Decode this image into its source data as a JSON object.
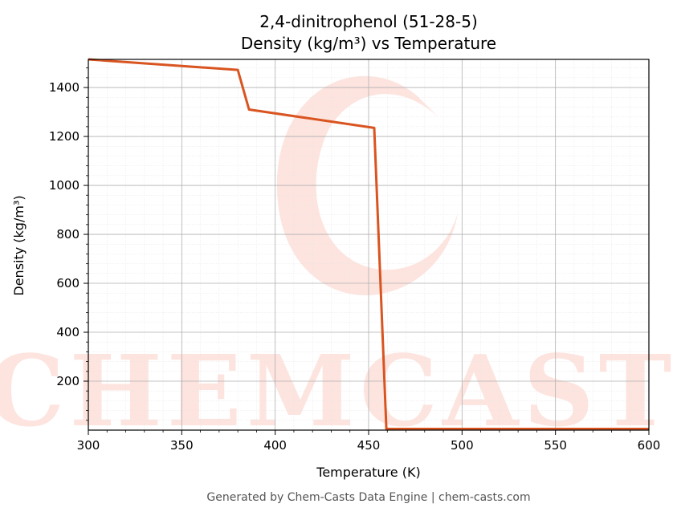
{
  "chart_data": {
    "type": "line",
    "title": "2,4-dinitrophenol (51-28-5)",
    "subtitle": "Density (kg/m³) vs Temperature",
    "xlabel": "Temperature (K)",
    "ylabel": "Density (kg/m³)",
    "xlim": [
      300,
      600
    ],
    "ylim": [
      0,
      1515
    ],
    "xticks": [
      300,
      350,
      400,
      450,
      500,
      550,
      600
    ],
    "yticks": [
      200,
      400,
      600,
      800,
      1000,
      1200,
      1400
    ],
    "grid": true,
    "series": [
      {
        "color": "#d95420",
        "x": [
          300,
          380,
          386,
          453,
          459.5,
          600
        ],
        "y": [
          1515,
          1472,
          1310,
          1235,
          5,
          5
        ]
      }
    ]
  },
  "watermark": {
    "text": "CHEMCASTS",
    "color": "#fde4df"
  },
  "footer": "Generated by Chem-Casts Data Engine | chem-casts.com"
}
